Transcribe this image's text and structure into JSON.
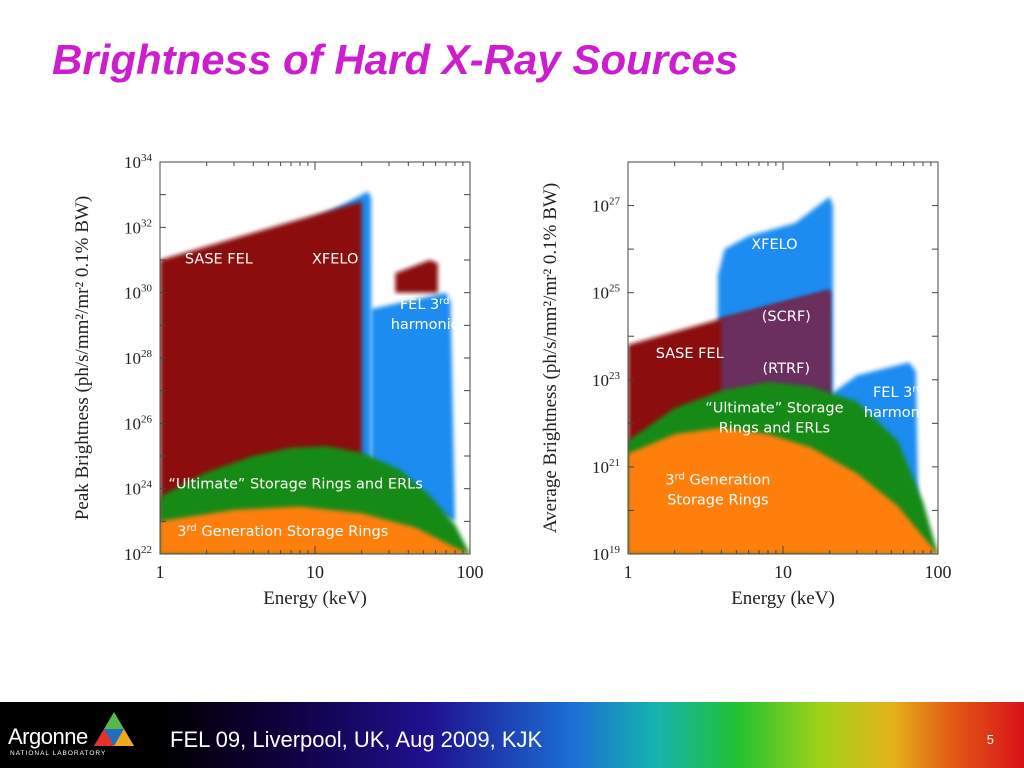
{
  "slide": {
    "title": "Brightness of Hard X-Ray Sources"
  },
  "footer": {
    "logo_text": "Argonne",
    "logo_subtext": "NATIONAL LABORATORY",
    "text": "FEL 09, Liverpool, UK, Aug 2009, KJK",
    "page_number": "5"
  },
  "colors": {
    "title": "#cc1ecc",
    "sase_fel": "#8b0a0a",
    "xfelo": "#1e8cf0",
    "ultimate_rings": "#138a13",
    "third_gen_rings": "#ff7f10"
  },
  "chart_data": [
    {
      "type": "area",
      "xlabel": "Energy (keV)",
      "ylabel": "Peak Brightness (ph/s/mm²/mr² 0.1% BW)",
      "x_scale": "log",
      "y_scale": "log",
      "xlim": [
        1,
        100
      ],
      "ylim": [
        1e+22,
        1e+34
      ],
      "x_ticks": [
        {
          "value": 1,
          "label": "1"
        },
        {
          "value": 10,
          "label": "10"
        },
        {
          "value": 100,
          "label": "100"
        }
      ],
      "y_ticks": [
        {
          "exp": 22,
          "base": "10",
          "sup": "22"
        },
        {
          "exp": 24,
          "base": "10",
          "sup": "24"
        },
        {
          "exp": 26,
          "base": "10",
          "sup": "26"
        },
        {
          "exp": 28,
          "base": "10",
          "sup": "28"
        },
        {
          "exp": 30,
          "base": "10",
          "sup": "30"
        },
        {
          "exp": 32,
          "base": "10",
          "sup": "32"
        },
        {
          "exp": 34,
          "base": "10",
          "sup": "34"
        }
      ],
      "regions": [
        {
          "key": "xfelo",
          "color": "#1e8cf0",
          "label_lines": [
            {
              "text": "XFELO"
            }
          ],
          "label_at": {
            "x": 13.5,
            "y": 30.9
          },
          "points": [
            [
              4.4,
              24.0
            ],
            [
              4.4,
              31.0
            ],
            [
              5.0,
              31.5
            ],
            [
              22,
              33.1
            ],
            [
              23,
              32.9
            ],
            [
              23,
              24.0
            ]
          ]
        },
        {
          "key": "xfelo-3rd-harmonic",
          "color": "#1e8cf0",
          "label_lines": [
            {
              "text": "FEL 3",
              "sup": "rd"
            },
            {
              "text": "harmonic"
            }
          ],
          "label_at": {
            "x": 51,
            "y": 29.5
          },
          "points": [
            [
              23,
              24.0
            ],
            [
              23,
              29.5
            ],
            [
              70,
              30.0
            ],
            [
              75,
              29.7
            ],
            [
              80,
              23.0
            ]
          ]
        },
        {
          "key": "sase-fel",
          "color": "#8b0a0a",
          "label_lines": [
            {
              "text": "SASE FEL"
            }
          ],
          "label_at": {
            "x": 2.4,
            "y": 30.9
          },
          "points": [
            [
              1,
              22.0
            ],
            [
              1,
              31.0
            ],
            [
              20,
              32.8
            ],
            [
              20,
              22.0
            ]
          ]
        },
        {
          "key": "sase-fel-3rd-harmonic",
          "color": "#8b0a0a",
          "label_lines": [],
          "label_at": null,
          "points": [
            [
              33,
              30.0
            ],
            [
              33,
              30.6
            ],
            [
              55,
              31.0
            ],
            [
              62,
              30.9
            ],
            [
              62,
              30.0
            ]
          ]
        },
        {
          "key": "ultimate-storage-rings",
          "color": "#138a13",
          "label_lines": [
            {
              "text": "“Ultimate” Storage Rings and ERLs"
            }
          ],
          "label_at": {
            "x": 7.5,
            "y": 24.0
          },
          "points": [
            [
              1,
              22.0
            ],
            [
              1,
              23.75
            ],
            [
              2,
              24.5
            ],
            [
              4,
              25.0
            ],
            [
              7,
              25.25
            ],
            [
              12,
              25.3
            ],
            [
              20,
              25.1
            ],
            [
              35,
              24.6
            ],
            [
              55,
              23.8
            ],
            [
              80,
              22.9
            ],
            [
              100,
              22.0
            ]
          ]
        },
        {
          "key": "third-generation-rings",
          "color": "#ff7f10",
          "label_lines": [
            {
              "text": "3",
              "sup": "rd",
              "after": " Generation Storage Rings"
            }
          ],
          "label_at": {
            "x": 6.2,
            "y": 22.55
          },
          "points": [
            [
              1,
              22.0
            ],
            [
              1,
              23.0
            ],
            [
              3,
              23.35
            ],
            [
              8,
              23.45
            ],
            [
              20,
              23.25
            ],
            [
              45,
              22.8
            ],
            [
              80,
              22.2
            ],
            [
              100,
              22.0
            ]
          ]
        }
      ]
    },
    {
      "type": "area",
      "xlabel": "Energy (keV)",
      "ylabel": "Average Brightness (ph/s/mm²/mr² 0.1% BW)",
      "x_scale": "log",
      "y_scale": "log",
      "xlim": [
        1,
        100
      ],
      "ylim": [
        1e+19,
        1e+28
      ],
      "x_ticks": [
        {
          "value": 1,
          "label": "1"
        },
        {
          "value": 10,
          "label": "10"
        },
        {
          "value": 100,
          "label": "100"
        }
      ],
      "y_ticks": [
        {
          "exp": 19,
          "base": "10",
          "sup": "19"
        },
        {
          "exp": 21,
          "base": "10",
          "sup": "21"
        },
        {
          "exp": 23,
          "base": "10",
          "sup": "23"
        },
        {
          "exp": 25,
          "base": "10",
          "sup": "25"
        },
        {
          "exp": 27,
          "base": "10",
          "sup": "27"
        }
      ],
      "regions": [
        {
          "key": "xfelo",
          "color": "#1e8cf0",
          "label_lines": [
            {
              "text": "XFELO"
            }
          ],
          "label_at": {
            "x": 8.8,
            "y": 26.0
          },
          "points": [
            [
              3.8,
              20.0
            ],
            [
              3.8,
              25.4
            ],
            [
              4.2,
              26.0
            ],
            [
              6,
              26.3
            ],
            [
              12,
              26.6
            ],
            [
              20,
              27.2
            ],
            [
              21,
              27.0
            ],
            [
              21,
              20.0
            ]
          ]
        },
        {
          "key": "xfelo-3rd-harmonic",
          "color": "#1e8cf0",
          "label_lines": [
            {
              "text": "FEL 3",
              "sup": "rd"
            },
            {
              "text": "harmonic"
            }
          ],
          "label_at": {
            "x": 55,
            "y": 22.6
          },
          "points": [
            [
              21,
              20.0
            ],
            [
              21,
              22.7
            ],
            [
              30,
              23.1
            ],
            [
              65,
              23.4
            ],
            [
              72,
              23.2
            ],
            [
              75,
              19.5
            ]
          ]
        },
        {
          "key": "sase-fel",
          "color": "#8b0a0a",
          "label_lines": [
            {
              "text": "SASE FEL"
            }
          ],
          "label_at": {
            "x": 2.5,
            "y": 23.5
          },
          "points": [
            [
              1,
              19.0
            ],
            [
              1,
              23.8
            ],
            [
              4,
              24.4
            ],
            [
              20,
              25.05
            ],
            [
              20,
              19.0
            ]
          ]
        },
        {
          "key": "scrf",
          "color": "#6a2f5e",
          "label_lines": [
            {
              "text": "(SCRF)"
            }
          ],
          "label_at": {
            "x": 10.5,
            "y": 24.35
          },
          "points": [
            [
              4,
              22.0
            ],
            [
              4,
              24.4
            ],
            [
              20,
              25.05
            ],
            [
              20,
              22.0
            ]
          ]
        },
        {
          "key": "rtrf",
          "color": "#6a2f5e",
          "label_lines": [
            {
              "text": "(RTRF)"
            }
          ],
          "label_at": {
            "x": 10.5,
            "y": 23.15
          },
          "points": []
        },
        {
          "key": "ultimate-storage-rings",
          "color": "#138a13",
          "label_lines": [
            {
              "text": "“Ultimate” Storage"
            },
            {
              "text": "Rings and ERLs"
            }
          ],
          "label_at": {
            "x": 8.8,
            "y": 22.25
          },
          "points": [
            [
              1,
              19.0
            ],
            [
              1,
              21.6
            ],
            [
              2,
              22.35
            ],
            [
              4,
              22.75
            ],
            [
              8,
              22.95
            ],
            [
              15,
              22.85
            ],
            [
              30,
              22.5
            ],
            [
              55,
              21.6
            ],
            [
              80,
              20.2
            ],
            [
              100,
              19.0
            ]
          ]
        },
        {
          "key": "third-generation-rings",
          "color": "#ff7f10",
          "label_lines": [
            {
              "text": "3",
              "sup": "rd",
              "after": " Generation"
            },
            {
              "text": "Storage Rings"
            }
          ],
          "label_at": {
            "x": 3.8,
            "y": 20.6
          },
          "points": [
            [
              1,
              19.0
            ],
            [
              1,
              21.3
            ],
            [
              2,
              21.75
            ],
            [
              4,
              21.9
            ],
            [
              8,
              21.75
            ],
            [
              15,
              21.45
            ],
            [
              30,
              20.85
            ],
            [
              55,
              20.1
            ],
            [
              80,
              19.4
            ],
            [
              100,
              19.0
            ]
          ]
        }
      ]
    }
  ]
}
